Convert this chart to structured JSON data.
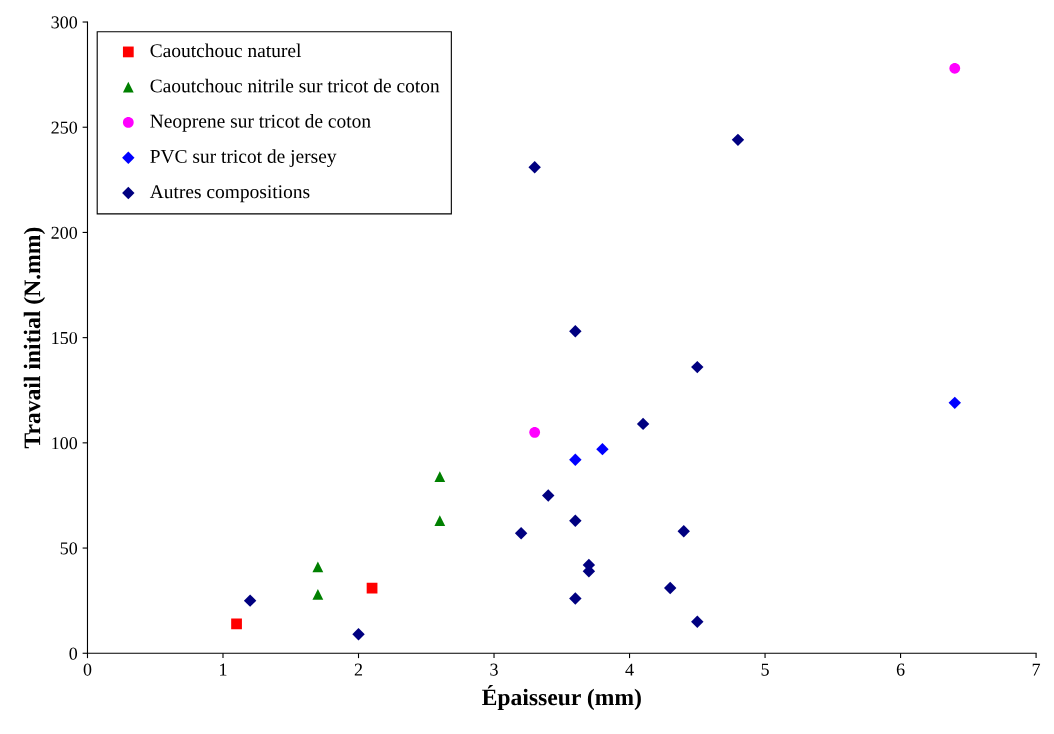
{
  "chart_data": {
    "type": "scatter",
    "xlabel": "Épaisseur (mm)",
    "ylabel": "Travail initial (N.mm)",
    "xlim": [
      0,
      7
    ],
    "xticks": [
      0,
      1,
      2,
      3,
      4,
      5,
      6,
      7
    ],
    "ylim": [
      0,
      300
    ],
    "yticks": [
      0,
      50,
      100,
      150,
      200,
      250,
      300
    ],
    "grid": false,
    "legend": "top left",
    "series": [
      {
        "name": "Caoutchouc naturel",
        "color": "#ff0000",
        "marker": "square",
        "x": [
          1.1,
          2.1
        ],
        "values": [
          14,
          31
        ]
      },
      {
        "name": "Caoutchouc nitrile sur tricot de coton",
        "color": "#008000",
        "marker": "triangle",
        "x": [
          1.7,
          1.7,
          2.6,
          2.6
        ],
        "values": [
          41,
          28,
          84,
          63
        ]
      },
      {
        "name": "Neoprene sur tricot de coton",
        "color": "#ff00ff",
        "marker": "circle",
        "x": [
          3.3,
          6.4
        ],
        "values": [
          105,
          278
        ]
      },
      {
        "name": "PVC sur tricot de jersey",
        "color": "#0000ff",
        "marker": "diamond",
        "x": [
          3.6,
          3.8,
          6.4
        ],
        "values": [
          92,
          97,
          119
        ]
      },
      {
        "name": "Autres compositions",
        "color": "#000080",
        "marker": "diamond",
        "x": [
          1.2,
          2.0,
          3.2,
          3.3,
          3.4,
          3.6,
          3.6,
          3.6,
          3.7,
          3.7,
          4.1,
          4.3,
          4.4,
          4.5,
          4.5,
          4.8
        ],
        "values": [
          25,
          9,
          57,
          231,
          75,
          153,
          63,
          26,
          42,
          39,
          109,
          31,
          58,
          136,
          15,
          244
        ]
      }
    ]
  }
}
